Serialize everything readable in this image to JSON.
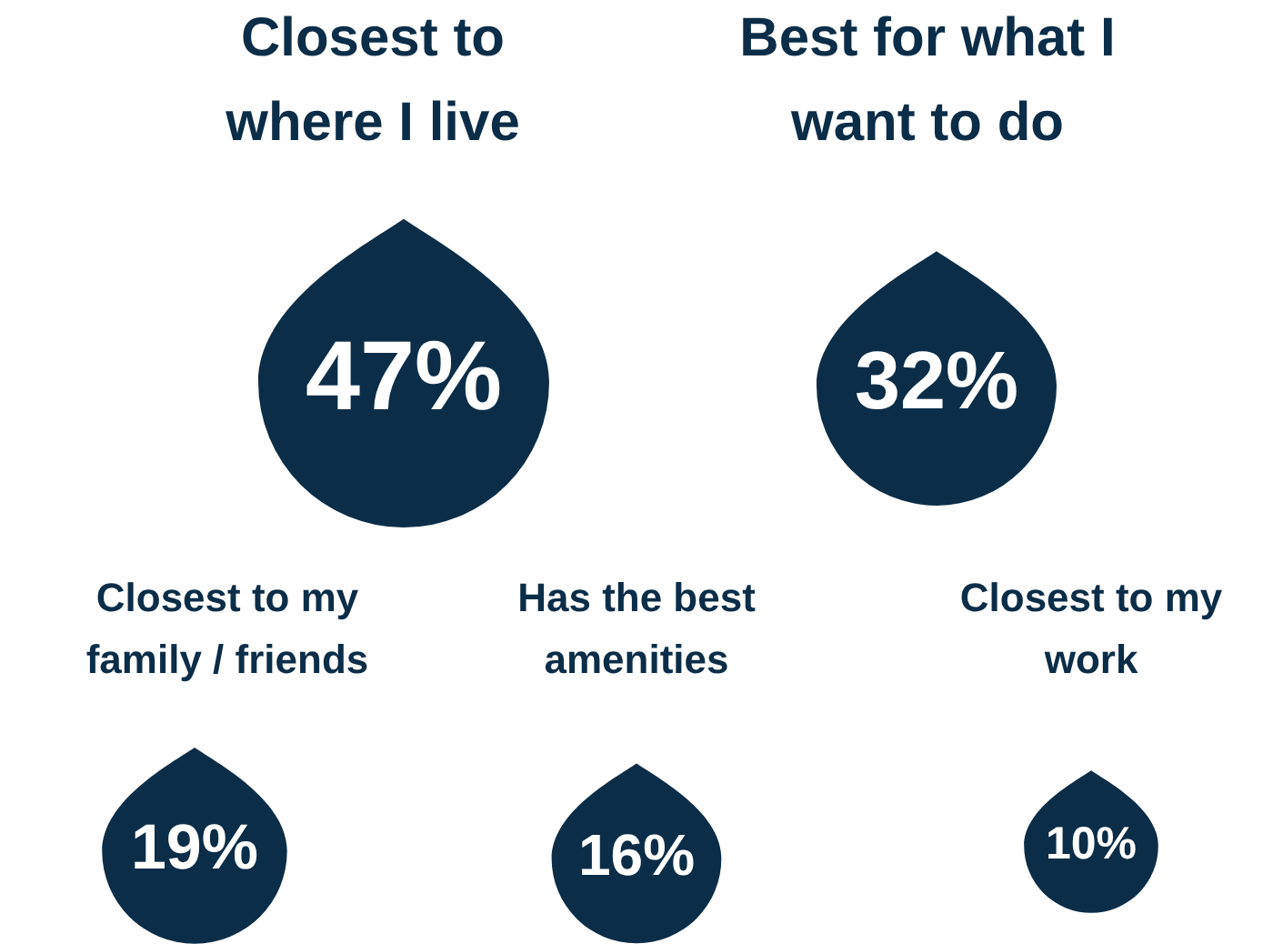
{
  "chart_data": {
    "type": "other",
    "categories": [
      "Closest to where I live",
      "Best for what I want to do",
      "Closest to my family / friends",
      "Has the best amenities",
      "Closest to my work"
    ],
    "values": [
      47,
      32,
      19,
      16,
      10
    ],
    "value_labels": [
      "47%",
      "32%",
      "19%",
      "16%",
      "10%"
    ],
    "color": "#0b2d48"
  }
}
